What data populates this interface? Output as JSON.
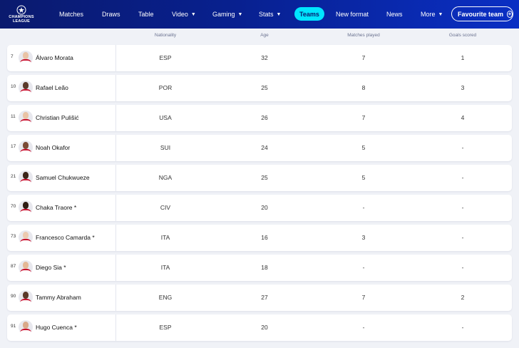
{
  "nav": {
    "logo_text": "CHAMPIONS LEAGUE",
    "items": [
      {
        "label": "Matches",
        "caret": false
      },
      {
        "label": "Draws",
        "caret": false
      },
      {
        "label": "Table",
        "caret": false
      },
      {
        "label": "Video",
        "caret": true
      },
      {
        "label": "Gaming",
        "caret": true
      },
      {
        "label": "Stats",
        "caret": true
      },
      {
        "label": "Teams",
        "caret": false,
        "active": true
      },
      {
        "label": "New format",
        "caret": false
      },
      {
        "label": "News",
        "caret": false
      },
      {
        "label": "More",
        "caret": true
      }
    ],
    "favourite_label": "Favourite team",
    "colors": {
      "accent": "#00e5ff",
      "nav_bg": "#0a1a6e"
    }
  },
  "table": {
    "headers": [
      "Nationality",
      "Age",
      "Matches played",
      "Goals scored"
    ],
    "rows": [
      {
        "number": "7",
        "name": "Álvaro Morata",
        "nationality": "ESP",
        "age": "32",
        "matches": "7",
        "goals": "1"
      },
      {
        "number": "10",
        "name": "Rafael Leão",
        "nationality": "POR",
        "age": "25",
        "matches": "8",
        "goals": "3"
      },
      {
        "number": "11",
        "name": "Christian Pulišić",
        "nationality": "USA",
        "age": "26",
        "matches": "7",
        "goals": "4"
      },
      {
        "number": "17",
        "name": "Noah Okafor",
        "nationality": "SUI",
        "age": "24",
        "matches": "5",
        "goals": "-"
      },
      {
        "number": "21",
        "name": "Samuel Chukwueze",
        "nationality": "NGA",
        "age": "25",
        "matches": "5",
        "goals": "-"
      },
      {
        "number": "70",
        "name": "Chaka Traore *",
        "nationality": "CIV",
        "age": "20",
        "matches": "-",
        "goals": "-"
      },
      {
        "number": "73",
        "name": "Francesco Camarda *",
        "nationality": "ITA",
        "age": "16",
        "matches": "3",
        "goals": "-"
      },
      {
        "number": "87",
        "name": "Diego Sia *",
        "nationality": "ITA",
        "age": "18",
        "matches": "-",
        "goals": "-"
      },
      {
        "number": "90",
        "name": "Tammy Abraham",
        "nationality": "ENG",
        "age": "27",
        "matches": "7",
        "goals": "2"
      },
      {
        "number": "91",
        "name": "Hugo Cuenca *",
        "nationality": "ESP",
        "age": "20",
        "matches": "-",
        "goals": "-"
      }
    ]
  }
}
